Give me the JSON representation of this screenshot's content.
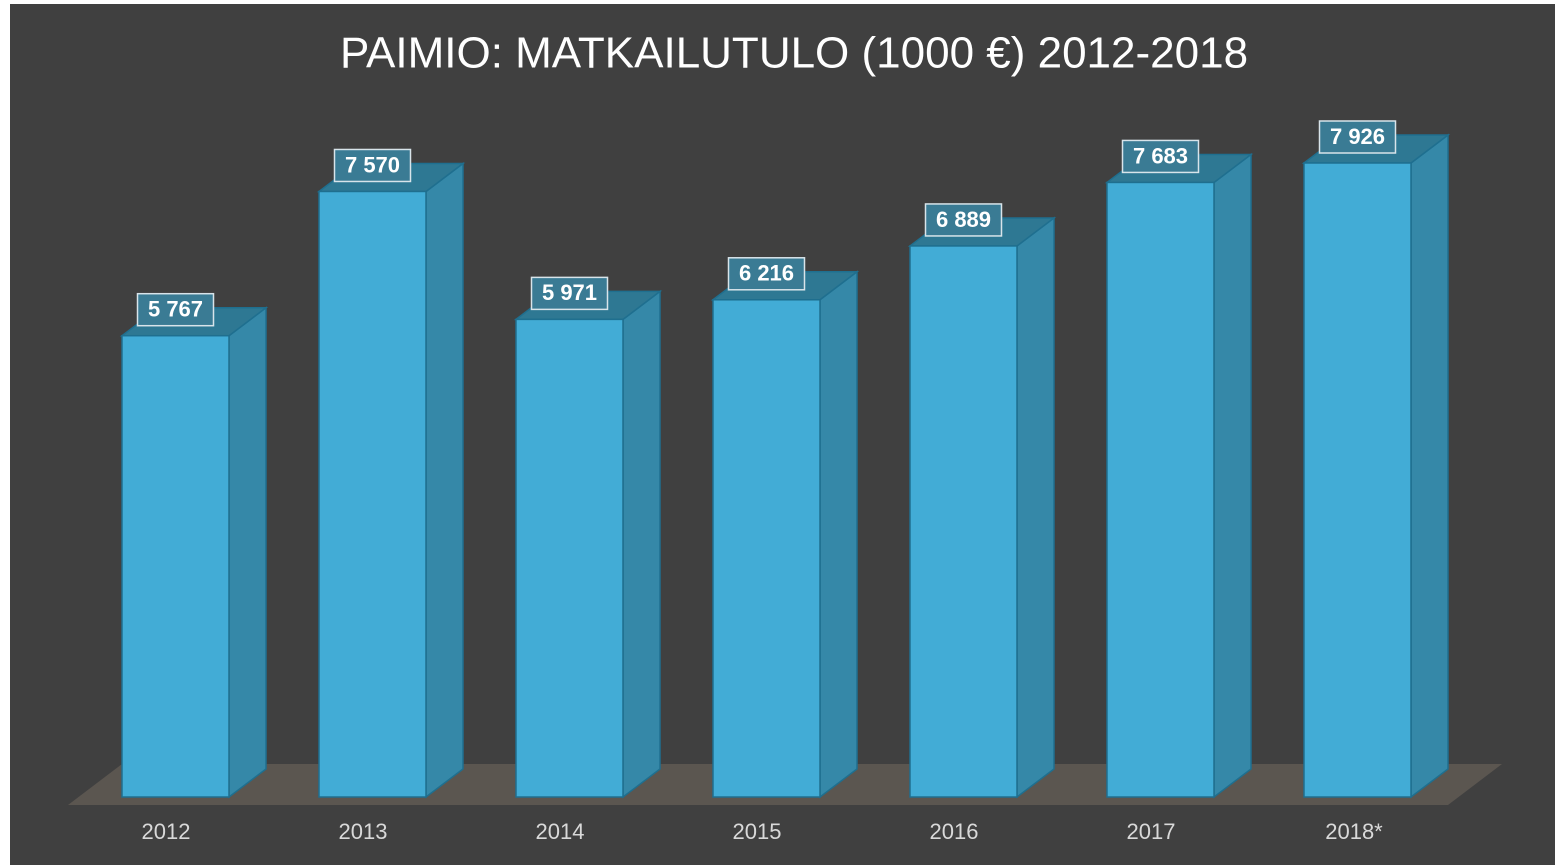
{
  "chart_data": {
    "type": "bar3d",
    "title": "PAIMIO: MATKAILUTULO (1000 €) 2012-2018",
    "categories": [
      "2012",
      "2013",
      "2014",
      "2015",
      "2016",
      "2017",
      "2018*"
    ],
    "values": [
      5767,
      7570,
      5971,
      6216,
      6889,
      7683,
      7926
    ],
    "value_labels": [
      "5 767",
      "7 570",
      "5 971",
      "6 216",
      "6 889",
      "7 683",
      "7 926"
    ],
    "color": "#42acd6"
  }
}
